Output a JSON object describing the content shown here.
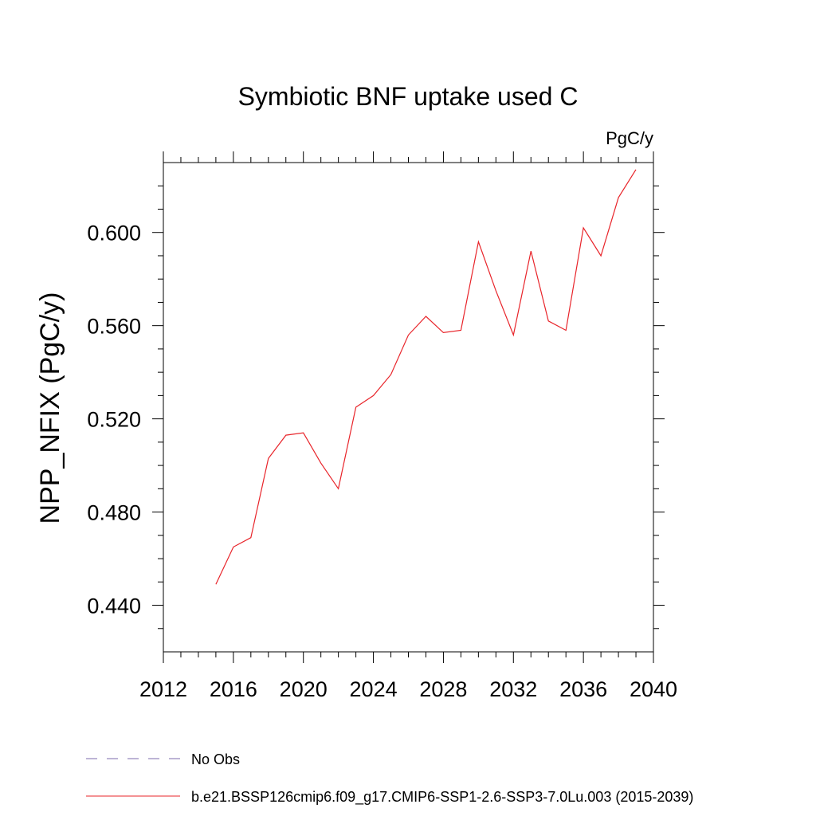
{
  "chart_data": {
    "type": "line",
    "title": "Symbiotic BNF uptake used C",
    "units_label": "PgC/y",
    "xlabel": "",
    "ylabel": "NPP_NFIX  (PgC/y)",
    "xlim": [
      2012,
      2040
    ],
    "ylim": [
      0.42,
      0.63
    ],
    "xticks": [
      2012,
      2016,
      2020,
      2024,
      2028,
      2032,
      2036,
      2040
    ],
    "xtick_labels": [
      "2012",
      "2016",
      "2020",
      "2024",
      "2028",
      "2032",
      "2036",
      "2040"
    ],
    "yticks": [
      0.44,
      0.48,
      0.52,
      0.56,
      0.6
    ],
    "ytick_labels": [
      "0.440",
      "0.480",
      "0.520",
      "0.560",
      "0.600"
    ],
    "grid": false,
    "legend_placement": "bottom-left",
    "legend": [
      {
        "label": "No Obs",
        "style": "dashed",
        "color": "#7b68ae"
      },
      {
        "label": "b.e21.BSSP126cmip6.f09_g17.CMIP6-SSP1-2.6-SSP3-7.0Lu.003 (2015-2039)",
        "style": "solid",
        "color": "#e8242a"
      }
    ],
    "series": [
      {
        "name": "b.e21.BSSP126cmip6.f09_g17.CMIP6-SSP1-2.6-SSP3-7.0Lu.003 (2015-2039)",
        "color": "#e8242a",
        "x": [
          2015,
          2016,
          2017,
          2018,
          2019,
          2020,
          2021,
          2022,
          2023,
          2024,
          2025,
          2026,
          2027,
          2028,
          2029,
          2030,
          2031,
          2032,
          2033,
          2034,
          2035,
          2036,
          2037,
          2038,
          2039
        ],
        "values": [
          0.449,
          0.465,
          0.469,
          0.503,
          0.513,
          0.514,
          0.501,
          0.49,
          0.525,
          0.53,
          0.539,
          0.556,
          0.564,
          0.557,
          0.558,
          0.596,
          0.575,
          0.556,
          0.592,
          0.562,
          0.558,
          0.602,
          0.59,
          0.615,
          0.627
        ]
      }
    ]
  }
}
